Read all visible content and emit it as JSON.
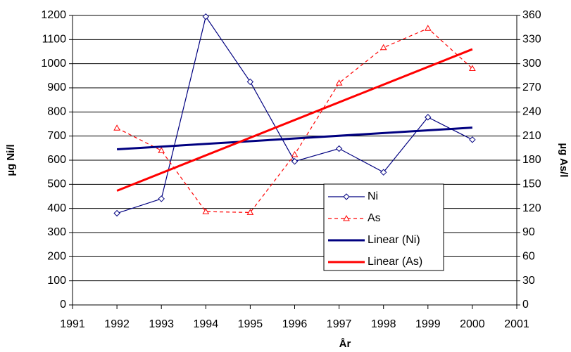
{
  "chart_data": {
    "type": "line",
    "x_label": "År",
    "y_label": "µg Ni/l",
    "y2_label": "µg As/l",
    "xlim": [
      1991,
      2001
    ],
    "xticks": [
      1991,
      1992,
      1993,
      1994,
      1995,
      1996,
      1997,
      1998,
      1999,
      2000,
      2001
    ],
    "ylim": [
      0,
      1200
    ],
    "yticks": [
      0,
      100,
      200,
      300,
      400,
      500,
      600,
      700,
      800,
      900,
      1000,
      1100,
      1200
    ],
    "y2lim": [
      0,
      360
    ],
    "y2ticks": [
      0,
      30,
      60,
      90,
      120,
      150,
      180,
      210,
      240,
      270,
      300,
      330,
      360
    ],
    "grid": true,
    "series": [
      {
        "name": "Ni",
        "color": "#000080",
        "marker": "diamond",
        "dash": false,
        "x": [
          1992,
          1993,
          1994,
          1995,
          1996,
          1997,
          1998,
          1999,
          2000
        ],
        "values": [
          380,
          440,
          1195,
          925,
          595,
          648,
          550,
          778,
          685
        ]
      },
      {
        "name": "As",
        "color": "#ff0000",
        "marker": "triangle",
        "dash": true,
        "axis": "y2",
        "x": [
          1992,
          1993,
          1994,
          1995,
          1996,
          1997,
          1998,
          1999,
          2000
        ],
        "values": [
          220,
          192,
          116,
          115,
          187,
          276,
          320,
          344,
          294
        ]
      },
      {
        "name": "Linear (Ni)",
        "color": "#000080",
        "trend": true,
        "x": [
          1992,
          2000
        ],
        "values": [
          645,
          735
        ]
      },
      {
        "name": "Linear (As)",
        "color": "#ff0000",
        "trend": true,
        "axis": "y2",
        "x": [
          1992,
          2000
        ],
        "values": [
          142,
          318
        ]
      }
    ]
  }
}
